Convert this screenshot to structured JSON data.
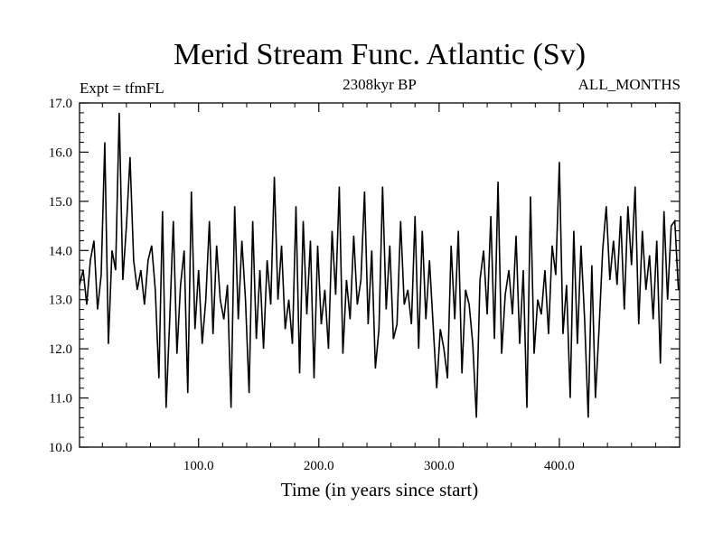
{
  "chart_data": {
    "type": "line",
    "title": "Merid Stream Func. Atlantic (Sv)",
    "subtitle_left": "Expt = tfmFL",
    "subtitle_center": "2308kyr BP",
    "subtitle_right": "ALL_MONTHS",
    "xlabel": "Time (in years since start)",
    "ylabel": "",
    "xlim": [
      1,
      500
    ],
    "ylim": [
      10.0,
      17.0
    ],
    "x_ticks": [
      100,
      200,
      300,
      400
    ],
    "x_tick_labels": [
      "100.0",
      "200.0",
      "300.0",
      "400.0"
    ],
    "y_ticks": [
      10,
      11,
      12,
      13,
      14,
      15,
      16,
      17
    ],
    "y_tick_labels": [
      "10.0",
      "11.0",
      "12.0",
      "13.0",
      "14.0",
      "15.0",
      "16.0",
      "17.0"
    ],
    "grid": false,
    "series": [
      {
        "name": "Merid Stream Func. Atlantic",
        "color": "#000000",
        "x": [
          1,
          4,
          7,
          10,
          13,
          16,
          19,
          22,
          25,
          28,
          31,
          34,
          37,
          40,
          43,
          46,
          49,
          52,
          55,
          58,
          61,
          64,
          67,
          70,
          73,
          76,
          79,
          82,
          85,
          88,
          91,
          94,
          97,
          100,
          103,
          106,
          109,
          112,
          115,
          118,
          121,
          124,
          127,
          130,
          133,
          136,
          139,
          142,
          145,
          148,
          151,
          154,
          157,
          160,
          163,
          166,
          169,
          172,
          175,
          178,
          181,
          184,
          187,
          190,
          193,
          196,
          199,
          202,
          205,
          208,
          211,
          214,
          217,
          220,
          223,
          226,
          229,
          232,
          235,
          238,
          241,
          244,
          247,
          250,
          253,
          256,
          259,
          262,
          265,
          268,
          271,
          274,
          277,
          280,
          283,
          286,
          289,
          292,
          295,
          298,
          301,
          304,
          307,
          310,
          313,
          316,
          319,
          322,
          325,
          328,
          331,
          334,
          337,
          340,
          343,
          346,
          349,
          352,
          355,
          358,
          361,
          364,
          367,
          370,
          373,
          376,
          379,
          382,
          385,
          388,
          391,
          394,
          397,
          400,
          403,
          406,
          409,
          412,
          415,
          418,
          421,
          424,
          427,
          430,
          433,
          436,
          439,
          442,
          445,
          448,
          451,
          454,
          457,
          460,
          463,
          466,
          469,
          472,
          475,
          478,
          481,
          484,
          487,
          490,
          493,
          496,
          499
        ],
        "values": [
          13.3,
          13.6,
          12.9,
          13.8,
          14.2,
          12.8,
          13.5,
          16.2,
          12.1,
          14.0,
          13.6,
          16.8,
          13.4,
          14.5,
          15.9,
          13.8,
          13.2,
          13.6,
          12.9,
          13.8,
          14.1,
          13.2,
          11.4,
          14.8,
          10.8,
          12.6,
          14.6,
          11.9,
          13.3,
          14.0,
          11.1,
          15.2,
          12.4,
          13.6,
          12.1,
          13.0,
          14.6,
          12.3,
          14.1,
          13.0,
          12.6,
          13.3,
          10.8,
          14.9,
          12.6,
          14.2,
          13.0,
          11.1,
          14.6,
          12.2,
          13.6,
          12.0,
          13.8,
          12.9,
          15.5,
          13.0,
          14.1,
          12.4,
          13.0,
          12.1,
          14.9,
          11.5,
          14.6,
          12.7,
          14.2,
          11.4,
          14.1,
          12.5,
          13.2,
          12.0,
          14.4,
          13.1,
          15.3,
          11.9,
          13.4,
          12.6,
          14.3,
          12.9,
          13.4,
          15.2,
          12.5,
          14.0,
          11.6,
          12.4,
          15.3,
          12.8,
          14.1,
          12.2,
          12.5,
          14.6,
          12.9,
          13.2,
          12.5,
          14.7,
          12.0,
          14.4,
          12.6,
          13.8,
          12.5,
          11.2,
          12.4,
          12.0,
          11.4,
          14.1,
          12.6,
          14.4,
          11.5,
          13.2,
          12.9,
          12.1,
          10.6,
          13.4,
          14.0,
          12.7,
          14.7,
          12.2,
          15.4,
          11.9,
          13.1,
          13.6,
          12.7,
          14.3,
          12.1,
          13.6,
          10.8,
          15.1,
          11.9,
          13.0,
          12.7,
          13.6,
          12.3,
          14.1,
          13.5,
          15.8,
          12.3,
          13.3,
          11.0,
          14.4,
          12.1,
          14.1,
          12.6,
          10.6,
          13.7,
          11.0,
          12.4,
          14.0,
          14.9,
          13.4,
          14.2,
          13.3,
          14.7,
          12.8,
          14.9,
          13.7,
          15.3,
          12.5,
          14.4,
          13.2,
          13.9,
          12.6,
          14.2,
          11.7,
          14.8,
          13.0,
          14.5,
          14.6,
          13.2
        ]
      }
    ]
  }
}
